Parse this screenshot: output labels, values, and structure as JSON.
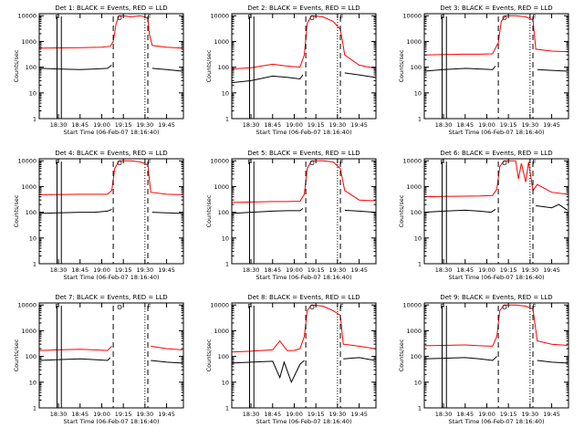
{
  "figure": {
    "xlabel": "Start Time (06-Feb-07 18:16:40)",
    "ylabel": "Counts/sec",
    "y_ticks": [
      "1",
      "10",
      "100",
      "1000",
      "10000"
    ],
    "x_ticks": [
      "18:30",
      "18:45",
      "19:00",
      "19:15",
      "19:30",
      "19:45"
    ],
    "legend_glyphs": {
      "start": "F",
      "circle": "O",
      "end": "F"
    },
    "colors": {
      "events": "#000000",
      "lld": "#ff0000",
      "axes": "#000000"
    }
  },
  "chart_data": [
    {
      "type": "line",
      "title": "Det 1: BLACK = Events, RED = LLD",
      "xlabel": "Start Time (06-Feb-07 18:16:40)",
      "ylabel": "Counts/sec",
      "y_scale": "log",
      "ylim": [
        1,
        12000
      ],
      "xlim": [
        "18:16:40",
        "19:56:40"
      ],
      "series": [
        {
          "name": "Events",
          "color": "#000000",
          "x": [
            "18:16:40",
            "18:30",
            "18:45",
            "18:55",
            "19:04",
            "19:07",
            "19:08",
            "19:12",
            "19:20",
            "19:27",
            "19:32",
            "19:35",
            "19:45",
            "19:56"
          ],
          "values": [
            90,
            85,
            80,
            85,
            90,
            120,
            null,
            null,
            null,
            null,
            null,
            90,
            80,
            70
          ]
        },
        {
          "name": "LLD",
          "color": "#ff0000",
          "x": [
            "18:16:40",
            "18:30",
            "18:45",
            "19:00",
            "19:06",
            "19:08",
            "19:10",
            "19:12",
            "19:15",
            "19:20",
            "19:27",
            "19:32",
            "19:33",
            "19:35",
            "19:45",
            "19:56"
          ],
          "values": [
            550,
            560,
            570,
            600,
            650,
            1000,
            5000,
            10000,
            10000,
            9000,
            10000,
            8000,
            2000,
            700,
            600,
            550
          ]
        }
      ]
    },
    {
      "type": "line",
      "title": "Det 2: BLACK = Events, RED = LLD",
      "xlabel": "Start Time (06-Feb-07 18:16:40)",
      "ylabel": "Counts/sec",
      "y_scale": "log",
      "ylim": [
        1,
        12000
      ],
      "xlim": [
        "18:16:40",
        "19:56:40"
      ],
      "series": [
        {
          "name": "Events",
          "color": "#000000",
          "x": [
            "18:16:40",
            "18:30",
            "18:45",
            "18:55",
            "19:04",
            "19:06",
            "19:08",
            "19:20",
            "19:27",
            "19:32",
            "19:35",
            "19:45",
            "19:56"
          ],
          "values": [
            25,
            30,
            45,
            40,
            35,
            50,
            null,
            null,
            null,
            null,
            60,
            50,
            40
          ]
        },
        {
          "name": "LLD",
          "color": "#ff0000",
          "x": [
            "18:16:40",
            "18:30",
            "18:45",
            "18:55",
            "19:04",
            "19:07",
            "19:09",
            "19:12",
            "19:20",
            "19:27",
            "19:32",
            "19:35",
            "19:45",
            "19:56"
          ],
          "values": [
            85,
            95,
            130,
            110,
            100,
            300,
            5000,
            10000,
            9000,
            6000,
            3000,
            300,
            120,
            90
          ]
        }
      ]
    },
    {
      "type": "line",
      "title": "Det 3: BLACK = Events, RED = LLD",
      "xlabel": "Start Time (06-Feb-07 18:16:40)",
      "ylabel": "Counts/sec",
      "y_scale": "log",
      "ylim": [
        1,
        12000
      ],
      "xlim": [
        "18:16:40",
        "19:56:40"
      ],
      "series": [
        {
          "name": "Events",
          "color": "#000000",
          "x": [
            "18:16:40",
            "18:30",
            "18:45",
            "18:55",
            "19:04",
            "19:06",
            "19:08",
            "19:12",
            "19:20",
            "19:27",
            "19:33",
            "19:35",
            "19:45",
            "19:56"
          ],
          "values": [
            70,
            80,
            90,
            85,
            80,
            110,
            null,
            null,
            null,
            null,
            null,
            80,
            75,
            70
          ]
        },
        {
          "name": "LLD",
          "color": "#ff0000",
          "x": [
            "18:16:40",
            "18:30",
            "18:45",
            "18:55",
            "19:04",
            "19:08",
            "19:10",
            "19:13",
            "19:20",
            "19:27",
            "19:32",
            "19:34",
            "19:45",
            "19:56"
          ],
          "values": [
            300,
            310,
            320,
            320,
            330,
            900,
            6000,
            10000,
            10000,
            9000,
            7000,
            500,
            420,
            400
          ]
        }
      ]
    },
    {
      "type": "line",
      "title": "Det 4: BLACK = Events, RED = LLD",
      "xlabel": "Start Time (06-Feb-07 18:16:40)",
      "ylabel": "Counts/sec",
      "y_scale": "log",
      "ylim": [
        1,
        12000
      ],
      "xlim": [
        "18:16:40",
        "19:56:40"
      ],
      "series": [
        {
          "name": "Events",
          "color": "#000000",
          "x": [
            "18:16:40",
            "18:30",
            "18:45",
            "18:55",
            "19:04",
            "19:07",
            "19:09",
            "19:20",
            "19:27",
            "19:32",
            "19:35",
            "19:45",
            "19:56"
          ],
          "values": [
            90,
            95,
            100,
            100,
            110,
            130,
            null,
            null,
            null,
            null,
            100,
            95,
            90
          ]
        },
        {
          "name": "LLD",
          "color": "#ff0000",
          "x": [
            "18:16:40",
            "18:30",
            "18:45",
            "18:55",
            "19:04",
            "19:07",
            "19:09",
            "19:12",
            "19:20",
            "19:27",
            "19:32",
            "19:34",
            "19:45",
            "19:56"
          ],
          "values": [
            480,
            490,
            500,
            500,
            500,
            700,
            5000,
            10000,
            10000,
            9000,
            7000,
            600,
            500,
            480
          ]
        }
      ]
    },
    {
      "type": "line",
      "title": "Det 5: BLACK = Events, RED = LLD",
      "xlabel": "Start Time (06-Feb-07 18:16:40)",
      "ylabel": "Counts/sec",
      "y_scale": "log",
      "ylim": [
        1,
        12000
      ],
      "xlim": [
        "18:16:40",
        "19:56:40"
      ],
      "series": [
        {
          "name": "Events",
          "color": "#000000",
          "x": [
            "18:16:40",
            "18:30",
            "18:45",
            "18:55",
            "19:04",
            "19:06",
            "19:08",
            "19:20",
            "19:27",
            "19:32",
            "19:35",
            "19:45",
            "19:56"
          ],
          "values": [
            90,
            100,
            110,
            115,
            115,
            140,
            null,
            null,
            null,
            null,
            120,
            110,
            100
          ]
        },
        {
          "name": "LLD",
          "color": "#ff0000",
          "x": [
            "18:16:40",
            "18:30",
            "18:45",
            "18:55",
            "19:04",
            "19:07",
            "19:09",
            "19:12",
            "19:20",
            "19:27",
            "19:32",
            "19:35",
            "19:45",
            "19:56"
          ],
          "values": [
            240,
            250,
            260,
            260,
            270,
            500,
            5000,
            10000,
            10000,
            9000,
            5000,
            700,
            300,
            280
          ]
        }
      ]
    },
    {
      "type": "line",
      "title": "Det 6: BLACK = Events, RED = LLD",
      "xlabel": "Start Time (06-Feb-07 18:16:40)",
      "ylabel": "Counts/sec",
      "y_scale": "log",
      "ylim": [
        1,
        12000
      ],
      "xlim": [
        "18:16:40",
        "19:56:40"
      ],
      "series": [
        {
          "name": "Events",
          "color": "#000000",
          "x": [
            "18:16:40",
            "18:30",
            "18:45",
            "18:55",
            "19:03",
            "19:06",
            "19:08",
            "19:20",
            "19:27",
            "19:32",
            "19:34",
            "19:45",
            "19:50",
            "19:56"
          ],
          "values": [
            100,
            110,
            120,
            110,
            100,
            130,
            null,
            null,
            null,
            null,
            180,
            150,
            200,
            120
          ]
        },
        {
          "name": "LLD",
          "color": "#ff0000",
          "x": [
            "18:16:40",
            "18:30",
            "18:45",
            "18:55",
            "19:04",
            "19:07",
            "19:09",
            "19:12",
            "19:20",
            "19:22",
            "19:24",
            "19:27",
            "19:29",
            "19:32",
            "19:35",
            "19:45",
            "19:56"
          ],
          "values": [
            400,
            410,
            420,
            430,
            450,
            800,
            6000,
            10000,
            10000,
            2000,
            8000,
            1500,
            9000,
            700,
            1200,
            600,
            500
          ]
        }
      ]
    },
    {
      "type": "line",
      "title": "Det 7: BLACK = Events, RED = LLD",
      "xlabel": "Start Time (06-Feb-07 18:16:40)",
      "ylabel": "Counts/sec",
      "y_scale": "log",
      "ylim": [
        1,
        12000
      ],
      "xlim": [
        "18:16:40",
        "19:56:40"
      ],
      "series": [
        {
          "name": "Events",
          "color": "#000000",
          "x": [
            "18:16:40",
            "18:30",
            "18:45",
            "18:55",
            "19:04",
            "19:06",
            "19:08",
            "19:32",
            "19:34",
            "19:45",
            "19:56"
          ],
          "values": [
            70,
            75,
            80,
            75,
            70,
            90,
            null,
            null,
            70,
            60,
            55
          ]
        },
        {
          "name": "LLD",
          "color": "#ff0000",
          "x": [
            "18:16:40",
            "18:30",
            "18:45",
            "18:55",
            "19:04",
            "19:07",
            "19:08",
            "19:32",
            "19:34",
            "19:45",
            "19:56"
          ],
          "values": [
            170,
            180,
            190,
            180,
            170,
            250,
            null,
            null,
            250,
            200,
            180
          ]
        }
      ]
    },
    {
      "type": "line",
      "title": "Det 8: BLACK = Events, RED = LLD",
      "xlabel": "Start Time (06-Feb-07 18:16:40)",
      "ylabel": "Counts/sec",
      "y_scale": "log",
      "ylim": [
        1,
        12000
      ],
      "xlim": [
        "18:16:40",
        "19:56:40"
      ],
      "series": [
        {
          "name": "Events",
          "color": "#000000",
          "x": [
            "18:16:40",
            "18:30",
            "18:45",
            "18:50",
            "18:53",
            "18:58",
            "19:04",
            "19:07",
            "19:08",
            "19:20",
            "19:27",
            "19:32",
            "19:34",
            "19:45",
            "19:56"
          ],
          "values": [
            55,
            60,
            65,
            15,
            60,
            10,
            50,
            70,
            null,
            null,
            null,
            null,
            80,
            90,
            70
          ]
        },
        {
          "name": "LLD",
          "color": "#ff0000",
          "x": [
            "18:16:40",
            "18:30",
            "18:45",
            "18:50",
            "18:55",
            "19:00",
            "19:04",
            "19:07",
            "19:09",
            "19:12",
            "19:20",
            "19:27",
            "19:32",
            "19:34",
            "19:45",
            "19:56"
          ],
          "values": [
            150,
            160,
            180,
            400,
            170,
            170,
            200,
            600,
            6000,
            10000,
            9000,
            6000,
            4000,
            300,
            250,
            200
          ]
        }
      ]
    },
    {
      "type": "line",
      "title": "Det 9: BLACK = Events, RED = LLD",
      "xlabel": "Start Time (06-Feb-07 18:16:40)",
      "ylabel": "Counts/sec",
      "y_scale": "log",
      "ylim": [
        1,
        12000
      ],
      "xlim": [
        "18:16:40",
        "19:56:40"
      ],
      "series": [
        {
          "name": "Events",
          "color": "#000000",
          "x": [
            "18:16:40",
            "18:30",
            "18:45",
            "18:55",
            "19:04",
            "19:07",
            "19:08",
            "19:20",
            "19:27",
            "19:32",
            "19:35",
            "19:45",
            "19:56"
          ],
          "values": [
            80,
            85,
            90,
            80,
            70,
            100,
            null,
            null,
            null,
            null,
            70,
            60,
            55
          ]
        },
        {
          "name": "LLD",
          "color": "#ff0000",
          "x": [
            "18:16:40",
            "18:30",
            "18:45",
            "18:55",
            "19:04",
            "19:07",
            "19:09",
            "19:12",
            "19:20",
            "19:27",
            "19:32",
            "19:35",
            "19:45",
            "19:56"
          ],
          "values": [
            260,
            270,
            280,
            260,
            250,
            600,
            6000,
            10000,
            10000,
            9000,
            7000,
            400,
            300,
            270
          ]
        }
      ]
    }
  ]
}
